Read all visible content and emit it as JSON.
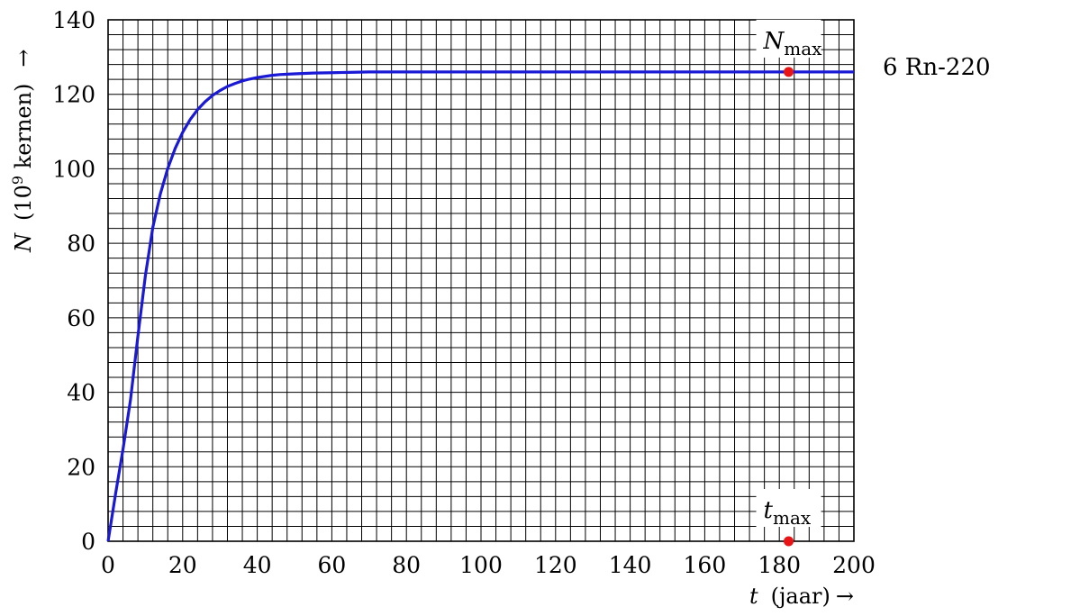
{
  "chart_data": {
    "type": "line",
    "x_label": {
      "symbol": "t",
      "unit": "(jaar)",
      "arrow": "→"
    },
    "y_label": {
      "symbol": "N",
      "unit_base": "(10",
      "unit_exp": "9",
      "unit_rest": " kernen)",
      "arrow": "→"
    },
    "xlim": [
      0,
      200
    ],
    "ylim": [
      0,
      140
    ],
    "x_ticks": [
      0,
      20,
      40,
      60,
      80,
      100,
      120,
      140,
      160,
      180,
      200
    ],
    "y_ticks": [
      0,
      20,
      40,
      60,
      80,
      100,
      120,
      140
    ],
    "grid": true,
    "line_color": "#1a1ad6",
    "marker_color": "#e81416",
    "series": [
      {
        "name": "6  Rn-220",
        "x": [
          0,
          2,
          4,
          6,
          8,
          10,
          12,
          14,
          16,
          18,
          20,
          22,
          24,
          26,
          28,
          30,
          32,
          34,
          36,
          38,
          40,
          42,
          44,
          46,
          48,
          50,
          55,
          60,
          70,
          80,
          100,
          120,
          140,
          160,
          180,
          200
        ],
        "y": [
          0,
          12.7,
          24.7,
          37.9,
          55.1,
          71.3,
          84.3,
          93.2,
          100.1,
          105.5,
          109.8,
          113.2,
          115.9,
          118.0,
          119.7,
          121.0,
          122.1,
          122.9,
          123.6,
          124.1,
          124.5,
          124.8,
          125.1,
          125.3,
          125.4,
          125.5,
          125.7,
          125.8,
          126,
          126,
          126,
          126,
          126,
          126,
          126,
          126
        ]
      }
    ],
    "annotations": [
      {
        "base": "N",
        "sub": "max",
        "x": 182.5,
        "y": 126
      },
      {
        "base": "t",
        "sub": "max",
        "x": 182.5,
        "y": 0
      }
    ]
  }
}
